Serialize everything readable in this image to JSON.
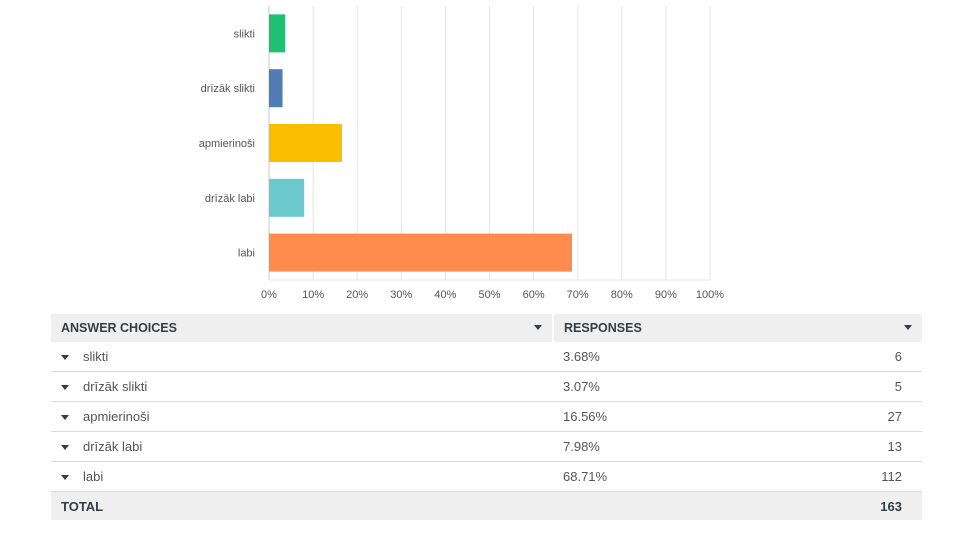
{
  "chart_data": {
    "type": "bar",
    "orientation": "horizontal",
    "categories": [
      "slikti",
      "drīzāk slikti",
      "apmierinoši",
      "drīzāk labi",
      "labi"
    ],
    "values": [
      3.68,
      3.07,
      16.56,
      7.98,
      68.71
    ],
    "colors": [
      "#21bf73",
      "#507cb6",
      "#f9be00",
      "#6bc8cd",
      "#ff8b4f"
    ],
    "xlim": [
      0,
      100
    ],
    "x_ticks": [
      "0%",
      "10%",
      "20%",
      "30%",
      "40%",
      "50%",
      "60%",
      "70%",
      "80%",
      "90%",
      "100%"
    ],
    "grid": true
  },
  "table": {
    "header_choices": "ANSWER CHOICES",
    "header_responses": "RESPONSES",
    "rows": [
      {
        "choice": "slikti",
        "percent": "3.68%",
        "count": "6"
      },
      {
        "choice": "drīzāk slikti",
        "percent": "3.07%",
        "count": "5"
      },
      {
        "choice": "apmierinoši",
        "percent": "16.56%",
        "count": "27"
      },
      {
        "choice": "drīzāk labi",
        "percent": "7.98%",
        "count": "13"
      },
      {
        "choice": "labi",
        "percent": "68.71%",
        "count": "112"
      }
    ],
    "total_label": "TOTAL",
    "total_count": "163"
  }
}
